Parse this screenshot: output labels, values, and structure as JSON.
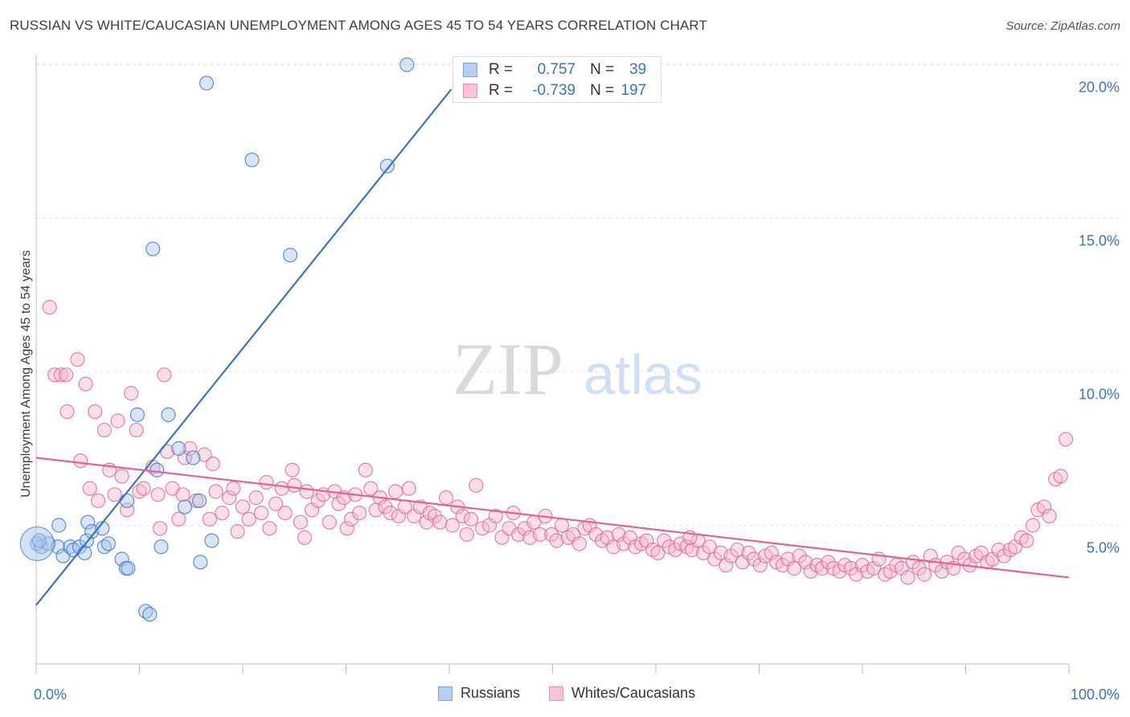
{
  "title": "RUSSIAN VS WHITE/CAUCASIAN UNEMPLOYMENT AMONG AGES 45 TO 54 YEARS CORRELATION CHART",
  "source": "Source: ZipAtlas.com",
  "watermark": {
    "zip": "ZIP",
    "atlas": "atlas"
  },
  "legend_top": {
    "rows": [
      {
        "r_label": "R =",
        "r_value": "0.757",
        "n_label": "N =",
        "n_value": "39"
      },
      {
        "r_label": "R =",
        "r_value": "-0.739",
        "n_label": "N =",
        "n_value": "197"
      }
    ]
  },
  "legend_bottom": {
    "series1": "Russians",
    "series2": "Whites/Caucasians"
  },
  "chart_data": {
    "type": "scatter",
    "title": "RUSSIAN VS WHITE/CAUCASIAN UNEMPLOYMENT AMONG AGES 45 TO 54 YEARS CORRELATION CHART",
    "xlabel": "",
    "ylabel": "Unemployment Among Ages 45 to 54 years",
    "xlim": [
      0,
      100
    ],
    "ylim": [
      0,
      20.5
    ],
    "x_tick_labels": [
      "0.0%",
      "100.0%"
    ],
    "y_ticks": [
      5,
      10,
      15,
      20
    ],
    "y_tick_labels": [
      "5.0%",
      "10.0%",
      "15.0%",
      "20.0%"
    ],
    "colors": {
      "russians": "#3873c9",
      "russians_fill": "#a9c6ec",
      "whites": "#e0648f",
      "whites_fill": "#f6b8cb",
      "tick_label": "#3873c9"
    },
    "series": [
      {
        "name": "Russians",
        "r": 0.757,
        "n": 39,
        "trend": {
          "x0": 0,
          "y0": 2.4,
          "x1": 40.2,
          "y1": 19.2
        },
        "points": [
          [
            0.1,
            4.4
          ],
          [
            0.5,
            4.3
          ],
          [
            1.2,
            4.4
          ],
          [
            2.1,
            4.3
          ],
          [
            2.2,
            5.0
          ],
          [
            2.6,
            4.0
          ],
          [
            3.3,
            4.3
          ],
          [
            3.6,
            4.2
          ],
          [
            4.2,
            4.3
          ],
          [
            4.7,
            4.1
          ],
          [
            4.9,
            4.5
          ],
          [
            5.0,
            5.1
          ],
          [
            5.4,
            4.8
          ],
          [
            6.4,
            4.9
          ],
          [
            6.6,
            4.3
          ],
          [
            7.0,
            4.4
          ],
          [
            8.3,
            3.9
          ],
          [
            8.7,
            3.6
          ],
          [
            8.9,
            3.6
          ],
          [
            8.8,
            5.8
          ],
          [
            9.8,
            8.6
          ],
          [
            10.6,
            2.2
          ],
          [
            11.0,
            2.1
          ],
          [
            11.3,
            14.0
          ],
          [
            11.7,
            6.8
          ],
          [
            12.1,
            4.3
          ],
          [
            12.8,
            8.6
          ],
          [
            13.8,
            7.5
          ],
          [
            14.4,
            5.6
          ],
          [
            15.2,
            7.2
          ],
          [
            15.8,
            5.8
          ],
          [
            15.9,
            3.8
          ],
          [
            16.5,
            19.4
          ],
          [
            17.0,
            4.5
          ],
          [
            20.9,
            16.9
          ],
          [
            24.6,
            13.8
          ],
          [
            34.0,
            16.7
          ],
          [
            35.9,
            20.0
          ],
          [
            0.3,
            4.5
          ]
        ]
      },
      {
        "name": "Whites/Caucasians",
        "r": -0.739,
        "n": 197,
        "trend": {
          "x0": 0,
          "y0": 7.2,
          "x1": 100,
          "y1": 3.3
        },
        "points": [
          [
            1.3,
            12.1
          ],
          [
            1.8,
            9.9
          ],
          [
            2.4,
            9.9
          ],
          [
            2.9,
            9.9
          ],
          [
            3.0,
            8.7
          ],
          [
            4.0,
            10.4
          ],
          [
            4.3,
            7.1
          ],
          [
            4.8,
            9.6
          ],
          [
            5.2,
            6.2
          ],
          [
            5.7,
            8.7
          ],
          [
            6.0,
            5.8
          ],
          [
            6.6,
            8.1
          ],
          [
            7.1,
            6.8
          ],
          [
            7.9,
            8.4
          ],
          [
            7.6,
            6.0
          ],
          [
            8.3,
            6.6
          ],
          [
            8.8,
            5.5
          ],
          [
            9.2,
            9.3
          ],
          [
            9.7,
            8.1
          ],
          [
            10.0,
            6.1
          ],
          [
            10.4,
            6.2
          ],
          [
            11.3,
            6.9
          ],
          [
            11.8,
            6.0
          ],
          [
            12.4,
            9.9
          ],
          [
            12.0,
            4.9
          ],
          [
            12.7,
            7.4
          ],
          [
            13.2,
            6.2
          ],
          [
            13.8,
            5.2
          ],
          [
            14.4,
            7.2
          ],
          [
            14.2,
            6.0
          ],
          [
            14.9,
            7.5
          ],
          [
            15.5,
            5.8
          ],
          [
            16.3,
            7.3
          ],
          [
            16.8,
            5.2
          ],
          [
            17.1,
            7.0
          ],
          [
            17.4,
            6.1
          ],
          [
            18.0,
            5.4
          ],
          [
            18.7,
            5.9
          ],
          [
            19.1,
            6.2
          ],
          [
            19.5,
            4.8
          ],
          [
            20.0,
            5.6
          ],
          [
            20.6,
            5.2
          ],
          [
            21.3,
            5.9
          ],
          [
            21.8,
            5.4
          ],
          [
            22.3,
            6.4
          ],
          [
            22.6,
            4.9
          ],
          [
            23.2,
            5.7
          ],
          [
            23.8,
            6.2
          ],
          [
            24.1,
            5.4
          ],
          [
            24.8,
            6.8
          ],
          [
            25.0,
            6.3
          ],
          [
            25.6,
            5.1
          ],
          [
            26.2,
            6.1
          ],
          [
            26.7,
            5.5
          ],
          [
            27.3,
            5.8
          ],
          [
            27.8,
            6.0
          ],
          [
            28.4,
            5.1
          ],
          [
            28.9,
            6.1
          ],
          [
            29.3,
            5.7
          ],
          [
            29.8,
            5.9
          ],
          [
            30.1,
            4.9
          ],
          [
            30.5,
            5.2
          ],
          [
            30.9,
            6.0
          ],
          [
            31.3,
            5.4
          ],
          [
            31.9,
            6.8
          ],
          [
            32.4,
            6.2
          ],
          [
            32.9,
            5.5
          ],
          [
            33.3,
            5.9
          ],
          [
            33.8,
            5.6
          ],
          [
            34.3,
            5.4
          ],
          [
            34.8,
            6.1
          ],
          [
            35.1,
            5.3
          ],
          [
            35.7,
            5.6
          ],
          [
            36.1,
            6.2
          ],
          [
            36.6,
            5.3
          ],
          [
            37.2,
            5.6
          ],
          [
            37.8,
            5.1
          ],
          [
            38.1,
            5.4
          ],
          [
            38.6,
            5.3
          ],
          [
            39.1,
            5.1
          ],
          [
            39.7,
            5.9
          ],
          [
            40.3,
            5.0
          ],
          [
            40.8,
            5.6
          ],
          [
            41.3,
            5.3
          ],
          [
            42.1,
            5.2
          ],
          [
            42.6,
            6.3
          ],
          [
            43.2,
            4.9
          ],
          [
            43.9,
            5.0
          ],
          [
            44.5,
            5.3
          ],
          [
            45.1,
            4.6
          ],
          [
            45.8,
            4.9
          ],
          [
            46.2,
            5.4
          ],
          [
            46.7,
            4.7
          ],
          [
            47.3,
            4.9
          ],
          [
            47.8,
            4.6
          ],
          [
            48.2,
            5.1
          ],
          [
            48.8,
            4.7
          ],
          [
            49.3,
            5.3
          ],
          [
            49.9,
            4.7
          ],
          [
            50.4,
            4.5
          ],
          [
            50.9,
            5.0
          ],
          [
            51.5,
            4.6
          ],
          [
            52.0,
            4.7
          ],
          [
            52.6,
            4.4
          ],
          [
            53.1,
            4.9
          ],
          [
            53.6,
            5.0
          ],
          [
            54.2,
            4.7
          ],
          [
            54.8,
            4.5
          ],
          [
            55.3,
            4.6
          ],
          [
            55.9,
            4.3
          ],
          [
            56.4,
            4.7
          ],
          [
            56.9,
            4.4
          ],
          [
            57.5,
            4.6
          ],
          [
            58.0,
            4.3
          ],
          [
            58.6,
            4.4
          ],
          [
            59.1,
            4.5
          ],
          [
            59.7,
            4.2
          ],
          [
            60.2,
            4.1
          ],
          [
            60.8,
            4.5
          ],
          [
            61.3,
            4.3
          ],
          [
            61.9,
            4.2
          ],
          [
            62.4,
            4.4
          ],
          [
            63.0,
            4.3
          ],
          [
            63.5,
            4.2
          ],
          [
            64.1,
            4.5
          ],
          [
            64.6,
            4.1
          ],
          [
            65.2,
            4.3
          ],
          [
            65.7,
            3.9
          ],
          [
            66.3,
            4.1
          ],
          [
            66.8,
            3.7
          ],
          [
            67.3,
            4.0
          ],
          [
            67.9,
            4.2
          ],
          [
            68.4,
            3.8
          ],
          [
            69.0,
            4.1
          ],
          [
            69.5,
            3.9
          ],
          [
            70.1,
            3.7
          ],
          [
            70.6,
            4.0
          ],
          [
            71.2,
            4.1
          ],
          [
            71.7,
            3.8
          ],
          [
            72.3,
            3.7
          ],
          [
            72.8,
            3.9
          ],
          [
            73.4,
            3.6
          ],
          [
            73.9,
            4.0
          ],
          [
            74.5,
            3.8
          ],
          [
            75.0,
            3.5
          ],
          [
            75.6,
            3.7
          ],
          [
            76.1,
            3.6
          ],
          [
            76.7,
            3.8
          ],
          [
            77.2,
            3.6
          ],
          [
            77.8,
            3.5
          ],
          [
            78.3,
            3.7
          ],
          [
            78.9,
            3.6
          ],
          [
            79.4,
            3.4
          ],
          [
            80.0,
            3.7
          ],
          [
            80.5,
            3.5
          ],
          [
            81.1,
            3.6
          ],
          [
            81.6,
            3.9
          ],
          [
            82.2,
            3.4
          ],
          [
            82.7,
            3.5
          ],
          [
            83.3,
            3.7
          ],
          [
            83.8,
            3.6
          ],
          [
            84.4,
            3.3
          ],
          [
            84.9,
            3.8
          ],
          [
            85.5,
            3.6
          ],
          [
            86.0,
            3.4
          ],
          [
            86.6,
            4.0
          ],
          [
            87.1,
            3.7
          ],
          [
            87.7,
            3.5
          ],
          [
            88.2,
            3.8
          ],
          [
            88.8,
            3.6
          ],
          [
            89.3,
            4.1
          ],
          [
            89.9,
            3.9
          ],
          [
            90.4,
            3.7
          ],
          [
            91.0,
            4.0
          ],
          [
            91.5,
            4.1
          ],
          [
            92.1,
            3.8
          ],
          [
            92.6,
            3.9
          ],
          [
            93.2,
            4.2
          ],
          [
            93.7,
            4.0
          ],
          [
            94.3,
            4.2
          ],
          [
            94.8,
            4.3
          ],
          [
            95.4,
            4.6
          ],
          [
            95.9,
            4.5
          ],
          [
            96.5,
            5.0
          ],
          [
            97.0,
            5.5
          ],
          [
            97.6,
            5.6
          ],
          [
            98.1,
            5.3
          ],
          [
            98.7,
            6.5
          ],
          [
            99.2,
            6.6
          ],
          [
            99.7,
            7.8
          ],
          [
            63.3,
            4.6
          ],
          [
            41.7,
            4.7
          ],
          [
            26.0,
            4.6
          ]
        ]
      }
    ]
  }
}
